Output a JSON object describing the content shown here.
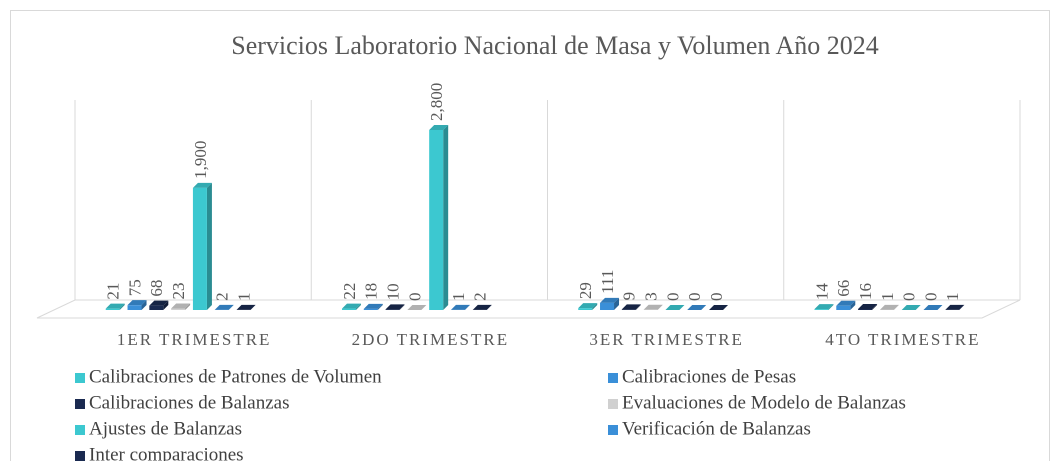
{
  "chart_data": {
    "type": "bar3d",
    "title": "Servicios Laboratorio Nacional de Masa y Volumen Año 2024",
    "categories": [
      "1ER TRIMESTRE",
      "2DO TRIMESTRE",
      "3ER TRIMESTRE",
      "4TO TRIMESTRE"
    ],
    "series": [
      {
        "name": "Calibraciones de Patrones de Volumen",
        "color": "#3cc8d0",
        "values": [
          21,
          22,
          29,
          14
        ]
      },
      {
        "name": "Calibraciones de Pesas",
        "color": "#3a8fd8",
        "values": [
          75,
          18,
          111,
          66
        ]
      },
      {
        "name": "Calibraciones de Balanzas",
        "color": "#1a2a50",
        "values": [
          68,
          10,
          9,
          16
        ]
      },
      {
        "name": "Evaluaciones de Modelo de Balanzas",
        "color": "#d0d0d0",
        "values": [
          23,
          0,
          3,
          1
        ]
      },
      {
        "name": "Ajustes de Balanzas",
        "color": "#3cc8d0",
        "values": [
          1900,
          2800,
          0,
          0
        ],
        "value_labels": [
          "1,900",
          "2,800",
          "0",
          "0"
        ]
      },
      {
        "name": "Verificación de Balanzas",
        "color": "#3a8fd8",
        "values": [
          2,
          1,
          0,
          0
        ]
      },
      {
        "name": "Inter comparaciones",
        "color": "#1a2a50",
        "values": [
          1,
          2,
          0,
          1
        ]
      }
    ],
    "legend": "bottom"
  }
}
